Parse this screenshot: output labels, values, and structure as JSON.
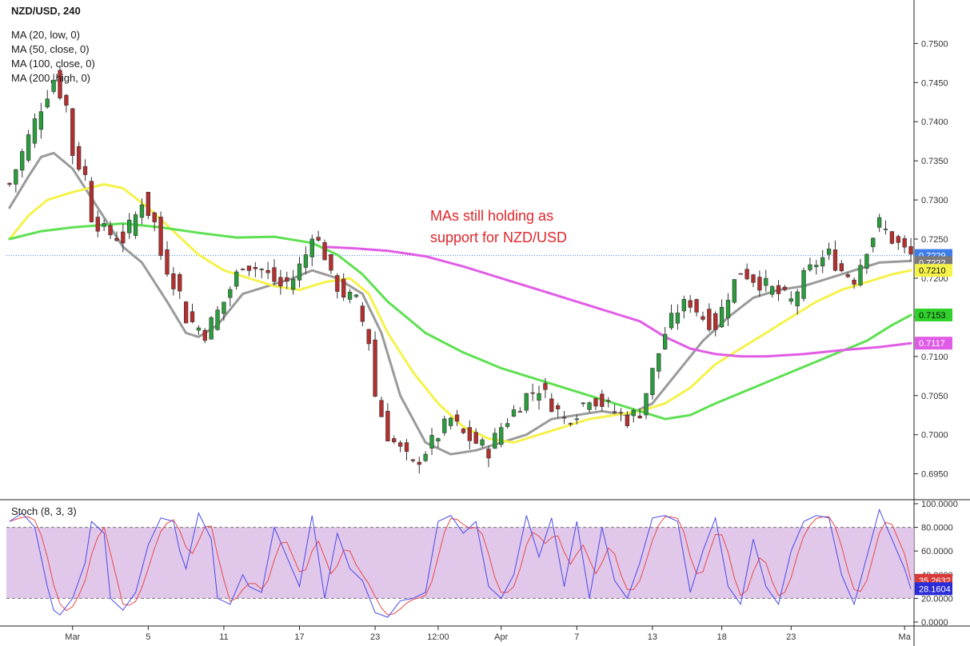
{
  "chart_data": [
    {
      "type": "candlestick",
      "title": "NZD/USD, 240",
      "legend": [
        "MA (20, low, 0)",
        "MA (50, close, 0)",
        "MA (100, close, 0)",
        "MA (200, high, 0)"
      ],
      "annotation": [
        "MAs still holding as",
        "support for NZD/USD"
      ],
      "x_tick_labels": [
        "Mar",
        "5",
        "11",
        "17",
        "23",
        "12:00",
        "Apr",
        "7",
        "13",
        "18",
        "23",
        "Ma"
      ],
      "y_ticks": [
        "0.6950",
        "0.7000",
        "0.7050",
        "0.7100",
        "0.7150",
        "0.7200",
        "0.7250",
        "0.7300",
        "0.7350",
        "0.7400",
        "0.7450",
        "0.7500"
      ],
      "ylim": [
        0.692,
        0.753
      ],
      "last_price_line": 0.7229,
      "price_path": [
        [
          0,
          0.732
        ],
        [
          3,
          0.738
        ],
        [
          5,
          0.742
        ],
        [
          7,
          0.7455
        ],
        [
          9,
          0.742
        ],
        [
          10,
          0.736
        ],
        [
          12,
          0.733
        ],
        [
          13,
          0.728
        ],
        [
          15,
          0.726
        ],
        [
          18,
          0.725
        ],
        [
          20,
          0.728
        ],
        [
          21,
          0.73
        ],
        [
          23,
          0.727
        ],
        [
          24,
          0.723
        ],
        [
          27,
          0.718
        ],
        [
          28,
          0.715
        ],
        [
          31,
          0.713
        ],
        [
          34,
          0.717
        ],
        [
          37,
          0.722
        ],
        [
          40,
          0.721
        ],
        [
          43,
          0.719
        ],
        [
          45,
          0.72
        ],
        [
          47,
          0.723
        ],
        [
          48,
          0.726
        ],
        [
          50,
          0.723
        ],
        [
          51,
          0.72
        ],
        [
          53,
          0.718
        ],
        [
          55,
          0.717
        ],
        [
          57,
          0.712
        ],
        [
          58,
          0.705
        ],
        [
          60,
          0.7
        ],
        [
          62,
          0.698
        ],
        [
          64,
          0.696
        ],
        [
          66,
          0.698
        ],
        [
          68,
          0.7
        ],
        [
          70,
          0.702
        ],
        [
          72,
          0.7
        ],
        [
          74,
          0.699
        ],
        [
          76,
          0.698
        ],
        [
          78,
          0.701
        ],
        [
          80,
          0.703
        ],
        [
          82,
          0.705
        ],
        [
          84,
          0.706
        ],
        [
          86,
          0.704
        ],
        [
          88,
          0.702
        ],
        [
          90,
          0.703
        ],
        [
          92,
          0.705
        ],
        [
          94,
          0.704
        ],
        [
          96,
          0.703
        ],
        [
          98,
          0.702
        ],
        [
          100,
          0.703
        ],
        [
          102,
          0.708
        ],
        [
          104,
          0.713
        ],
        [
          106,
          0.716
        ],
        [
          108,
          0.717
        ],
        [
          110,
          0.715
        ],
        [
          112,
          0.714
        ],
        [
          114,
          0.718
        ],
        [
          116,
          0.721
        ],
        [
          118,
          0.72
        ],
        [
          120,
          0.719
        ],
        [
          122,
          0.718
        ],
        [
          124,
          0.717
        ],
        [
          126,
          0.72
        ],
        [
          128,
          0.722
        ],
        [
          130,
          0.723
        ],
        [
          132,
          0.721
        ],
        [
          134,
          0.72
        ],
        [
          136,
          0.724
        ],
        [
          138,
          0.727
        ],
        [
          140,
          0.725
        ],
        [
          142,
          0.7235
        ],
        [
          143,
          0.7229
        ]
      ],
      "moving_averages": [
        {
          "name": "MA (20, low, 0)",
          "color": "#9a9a9a",
          "points": [
            [
              0,
              0.729
            ],
            [
              3,
              0.733
            ],
            [
              5,
              0.7355
            ],
            [
              7,
              0.736
            ],
            [
              10,
              0.734
            ],
            [
              14,
              0.729
            ],
            [
              18,
              0.724
            ],
            [
              21,
              0.722
            ],
            [
              25,
              0.717
            ],
            [
              28,
              0.713
            ],
            [
              30,
              0.7125
            ],
            [
              33,
              0.714
            ],
            [
              37,
              0.718
            ],
            [
              41,
              0.719
            ],
            [
              45,
              0.72
            ],
            [
              48,
              0.721
            ],
            [
              52,
              0.72
            ],
            [
              56,
              0.718
            ],
            [
              59,
              0.713
            ],
            [
              62,
              0.705
            ],
            [
              66,
              0.699
            ],
            [
              70,
              0.6975
            ],
            [
              74,
              0.698
            ],
            [
              78,
              0.699
            ],
            [
              82,
              0.7
            ],
            [
              86,
              0.702
            ],
            [
              90,
              0.7025
            ],
            [
              94,
              0.703
            ],
            [
              98,
              0.7025
            ],
            [
              102,
              0.704
            ],
            [
              106,
              0.708
            ],
            [
              110,
              0.712
            ],
            [
              114,
              0.715
            ],
            [
              118,
              0.7175
            ],
            [
              122,
              0.7185
            ],
            [
              126,
              0.719
            ],
            [
              130,
              0.72
            ],
            [
              134,
              0.721
            ],
            [
              138,
              0.722
            ],
            [
              143,
              0.7222
            ]
          ]
        },
        {
          "name": "MA (50, close, 0)",
          "color": "#f5f24a",
          "points": [
            [
              0,
              0.725
            ],
            [
              3,
              0.728
            ],
            [
              6,
              0.73
            ],
            [
              10,
              0.731
            ],
            [
              15,
              0.732
            ],
            [
              18,
              0.7315
            ],
            [
              22,
              0.729
            ],
            [
              26,
              0.726
            ],
            [
              30,
              0.723
            ],
            [
              34,
              0.721
            ],
            [
              38,
              0.72
            ],
            [
              42,
              0.719
            ],
            [
              46,
              0.7185
            ],
            [
              50,
              0.7195
            ],
            [
              54,
              0.72
            ],
            [
              57,
              0.718
            ],
            [
              60,
              0.713
            ],
            [
              64,
              0.708
            ],
            [
              68,
              0.704
            ],
            [
              72,
              0.701
            ],
            [
              76,
              0.6995
            ],
            [
              80,
              0.699
            ],
            [
              84,
              0.7
            ],
            [
              88,
              0.701
            ],
            [
              92,
              0.702
            ],
            [
              96,
              0.7025
            ],
            [
              100,
              0.703
            ],
            [
              104,
              0.704
            ],
            [
              108,
              0.706
            ],
            [
              112,
              0.709
            ],
            [
              116,
              0.711
            ],
            [
              120,
              0.713
            ],
            [
              124,
              0.715
            ],
            [
              128,
              0.717
            ],
            [
              132,
              0.7185
            ],
            [
              136,
              0.7195
            ],
            [
              140,
              0.7205
            ],
            [
              143,
              0.721
            ]
          ]
        },
        {
          "name": "MA (100, close, 0)",
          "color": "#5ee052",
          "points": [
            [
              0,
              0.725
            ],
            [
              5,
              0.726
            ],
            [
              10,
              0.7265
            ],
            [
              18,
              0.727
            ],
            [
              24,
              0.7265
            ],
            [
              30,
              0.7258
            ],
            [
              36,
              0.7252
            ],
            [
              42,
              0.7253
            ],
            [
              48,
              0.7245
            ],
            [
              52,
              0.723
            ],
            [
              56,
              0.7205
            ],
            [
              60,
              0.717
            ],
            [
              66,
              0.713
            ],
            [
              72,
              0.7105
            ],
            [
              78,
              0.7085
            ],
            [
              84,
              0.707
            ],
            [
              90,
              0.7055
            ],
            [
              96,
              0.704
            ],
            [
              100,
              0.703
            ],
            [
              104,
              0.702
            ],
            [
              108,
              0.7025
            ],
            [
              112,
              0.704
            ],
            [
              118,
              0.706
            ],
            [
              124,
              0.708
            ],
            [
              130,
              0.71
            ],
            [
              136,
              0.712
            ],
            [
              140,
              0.714
            ],
            [
              143,
              0.7153
            ]
          ]
        },
        {
          "name": "MA (200, high, 0)",
          "color": "#e15ce6",
          "points": [
            [
              50,
              0.724
            ],
            [
              55,
              0.7238
            ],
            [
              60,
              0.7235
            ],
            [
              66,
              0.7228
            ],
            [
              72,
              0.7215
            ],
            [
              78,
              0.72
            ],
            [
              84,
              0.7185
            ],
            [
              90,
              0.717
            ],
            [
              96,
              0.7155
            ],
            [
              100,
              0.7145
            ],
            [
              104,
              0.7125
            ],
            [
              108,
              0.711
            ],
            [
              112,
              0.7103
            ],
            [
              116,
              0.71
            ],
            [
              120,
              0.71
            ],
            [
              126,
              0.7103
            ],
            [
              132,
              0.7108
            ],
            [
              138,
              0.7112
            ],
            [
              143,
              0.7117
            ]
          ]
        }
      ],
      "price_badges": [
        {
          "label": "0.7229",
          "value": 0.7229,
          "color": "#3d7dea"
        },
        {
          "label": "0.7222",
          "value": 0.7222,
          "color": "#7a7a7a"
        },
        {
          "label": "0.7210",
          "value": 0.721,
          "color": "#f5f24a"
        },
        {
          "label": "0.7153",
          "value": 0.7153,
          "color": "#2fd12a"
        },
        {
          "label": "0.7117",
          "value": 0.7117,
          "color": "#e15ce6"
        }
      ]
    },
    {
      "type": "line",
      "title": "Stoch (8, 3, 3)",
      "ylim": [
        0,
        100
      ],
      "y_ticks": [
        "0.0000",
        "20.0000",
        "40.0000",
        "60.0000",
        "80.0000",
        "100.0000"
      ],
      "band": [
        20,
        80
      ],
      "band_color": "#dcbde6",
      "k_color": "#4a4ae8",
      "d_color": "#e84a4a",
      "k_last": 28.1604,
      "d_last": 35.2632,
      "k_badge": "28.1604",
      "d_badge": "35.2632",
      "k_pivots": [
        [
          0,
          85
        ],
        [
          2,
          92
        ],
        [
          4,
          80
        ],
        [
          6,
          30
        ],
        [
          7,
          10
        ],
        [
          8,
          6
        ],
        [
          10,
          20
        ],
        [
          12,
          50
        ],
        [
          13,
          85
        ],
        [
          15,
          75
        ],
        [
          16,
          20
        ],
        [
          18,
          10
        ],
        [
          20,
          25
        ],
        [
          22,
          65
        ],
        [
          24,
          88
        ],
        [
          26,
          85
        ],
        [
          27,
          60
        ],
        [
          28,
          45
        ],
        [
          30,
          92
        ],
        [
          32,
          70
        ],
        [
          33,
          20
        ],
        [
          35,
          15
        ],
        [
          37,
          40
        ],
        [
          38,
          30
        ],
        [
          40,
          25
        ],
        [
          42,
          80
        ],
        [
          44,
          55
        ],
        [
          46,
          30
        ],
        [
          48,
          90
        ],
        [
          50,
          20
        ],
        [
          52,
          75
        ],
        [
          54,
          45
        ],
        [
          56,
          35
        ],
        [
          58,
          8
        ],
        [
          60,
          4
        ],
        [
          62,
          18
        ],
        [
          64,
          20
        ],
        [
          66,
          25
        ],
        [
          68,
          85
        ],
        [
          70,
          90
        ],
        [
          72,
          75
        ],
        [
          74,
          85
        ],
        [
          76,
          30
        ],
        [
          78,
          20
        ],
        [
          80,
          40
        ],
        [
          82,
          90
        ],
        [
          84,
          55
        ],
        [
          86,
          88
        ],
        [
          88,
          30
        ],
        [
          90,
          85
        ],
        [
          92,
          20
        ],
        [
          94,
          80
        ],
        [
          96,
          35
        ],
        [
          98,
          20
        ],
        [
          100,
          50
        ],
        [
          102,
          88
        ],
        [
          104,
          90
        ],
        [
          106,
          85
        ],
        [
          108,
          25
        ],
        [
          110,
          60
        ],
        [
          112,
          88
        ],
        [
          114,
          30
        ],
        [
          116,
          15
        ],
        [
          118,
          70
        ],
        [
          120,
          30
        ],
        [
          122,
          15
        ],
        [
          124,
          60
        ],
        [
          126,
          85
        ],
        [
          128,
          90
        ],
        [
          130,
          88
        ],
        [
          132,
          40
        ],
        [
          134,
          15
        ],
        [
          136,
          55
        ],
        [
          138,
          95
        ],
        [
          140,
          70
        ],
        [
          142,
          45
        ],
        [
          143,
          28
        ]
      ]
    }
  ]
}
